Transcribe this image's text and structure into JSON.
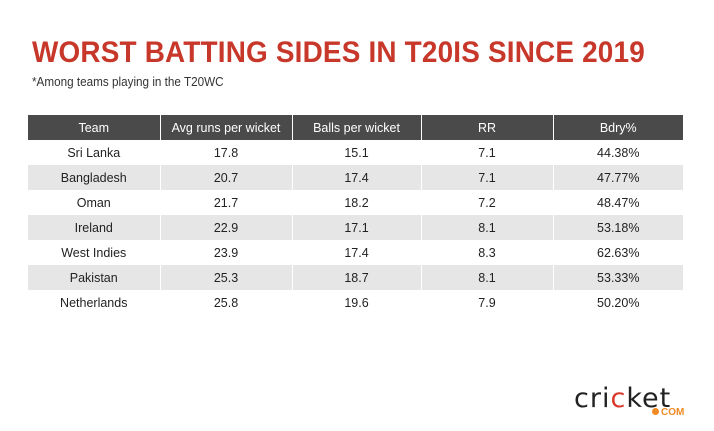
{
  "title": "WORST BATTING SIDES IN T20IS SINCE 2019",
  "subtitle": "*Among teams playing in the T20WC",
  "colors": {
    "title": "#c7372a",
    "header_bg": "#4a4a4a",
    "alt_row": "#e6e6e6",
    "logo_accent": "#f08a24"
  },
  "table": {
    "headers": [
      "Team",
      "Avg runs per wicket",
      "Balls per wicket",
      "RR",
      "Bdry%"
    ],
    "rows": [
      [
        "Sri Lanka",
        "17.8",
        "15.1",
        "7.1",
        "44.38%"
      ],
      [
        "Bangladesh",
        "20.7",
        "17.4",
        "7.1",
        "47.77%"
      ],
      [
        "Oman",
        "21.7",
        "18.2",
        "7.2",
        "48.47%"
      ],
      [
        "Ireland",
        "22.9",
        "17.1",
        "8.1",
        "53.18%"
      ],
      [
        "West Indies",
        "23.9",
        "17.4",
        "8.3",
        "62.63%"
      ],
      [
        "Pakistan",
        "25.3",
        "18.7",
        "8.1",
        "53.33%"
      ],
      [
        "Netherlands",
        "25.8",
        "19.6",
        "7.9",
        "50.20%"
      ]
    ]
  },
  "logo": {
    "main": "cricket",
    "suffix": "COM"
  }
}
